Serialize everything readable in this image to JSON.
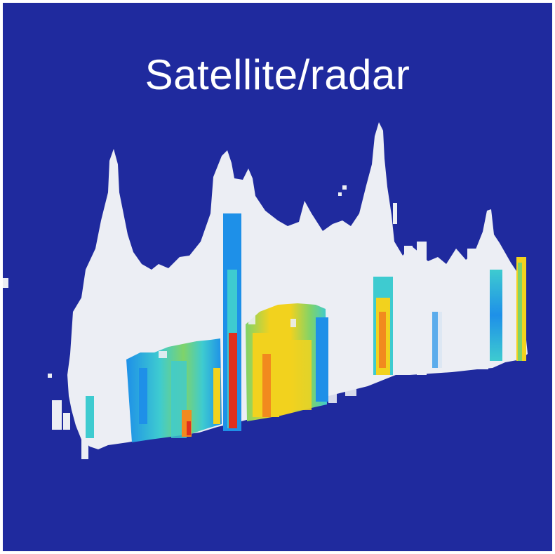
{
  "title": "Satellite/radar",
  "colors": {
    "background": "#1f2a9e",
    "cloud": "#eceef4",
    "radar_low": "#1e90e8",
    "radar_mid": "#3ecbd0",
    "radar_green": "#7fd36a",
    "radar_yellow": "#f2d21e",
    "radar_orange": "#f28a1e",
    "radar_high": "#e0301e"
  }
}
